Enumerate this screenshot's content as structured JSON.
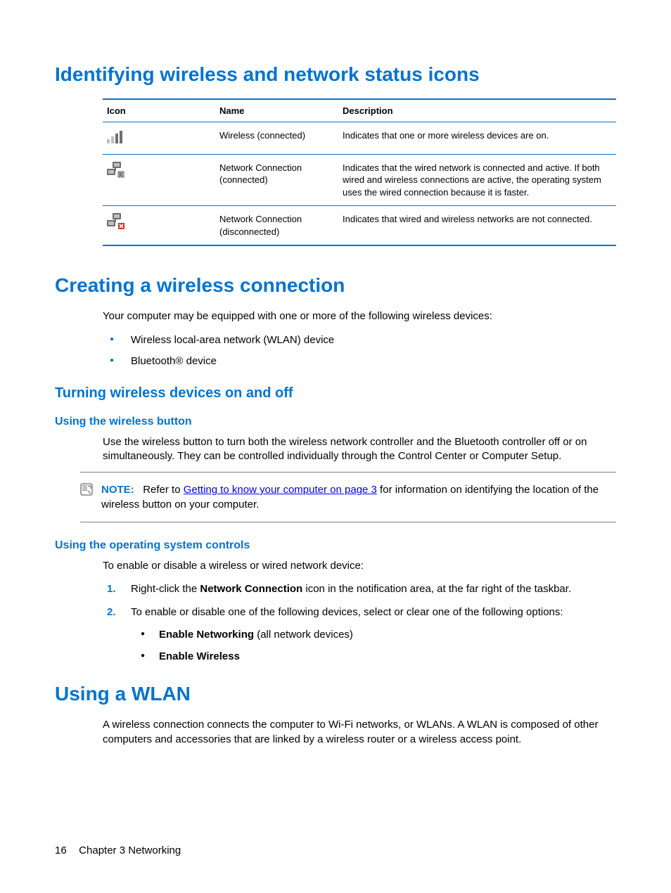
{
  "colors": {
    "heading_blue": "#0073cf",
    "border_blue": "#0073cf",
    "link_blue": "#0000ee",
    "step_number": "#0073cf",
    "bullet_blue": "#0073cf",
    "text_black": "#000000",
    "icon_gray_dark": "#6d6d6d",
    "icon_gray_light": "#bfbfbf",
    "icon_red": "#c03a2b",
    "note_border": "#808080",
    "background": "#ffffff"
  },
  "section1": {
    "heading": "Identifying wireless and network status icons",
    "table": {
      "headers": {
        "icon": "Icon",
        "name": "Name",
        "desc": "Description"
      },
      "rows": [
        {
          "icon_key": "wifi-bars",
          "name": "Wireless (connected)",
          "desc": "Indicates that one or more wireless devices are on."
        },
        {
          "icon_key": "net-connected",
          "name": "Network Connection (connected)",
          "desc": "Indicates that the wired network is connected and active. If both wired and wireless connections are active, the operating system uses the wired connection because it is faster."
        },
        {
          "icon_key": "net-disconnected",
          "name": "Network Connection (disconnected)",
          "desc": "Indicates that wired and wireless networks are not connected."
        }
      ]
    }
  },
  "section2": {
    "heading": "Creating a wireless connection",
    "intro": "Your computer may be equipped with one or more of the following wireless devices:",
    "bullets": [
      "Wireless local-area network (WLAN) device",
      "Bluetooth® device"
    ],
    "sub1": {
      "heading": "Turning wireless devices on and off",
      "s1": {
        "heading": "Using the wireless button",
        "para": "Use the wireless button to turn both the wireless network controller and the Bluetooth controller off or on simultaneously. They can be controlled individually through the Control Center or Computer Setup.",
        "note": {
          "label": "NOTE:",
          "before_link": "Refer to ",
          "link_text": "Getting to know your computer on page 3",
          "after_link": " for information on identifying the location of the wireless button on your computer."
        }
      },
      "s2": {
        "heading": "Using the operating system controls",
        "para": "To enable or disable a wireless or wired network device:",
        "steps": [
          {
            "pre": "Right-click the ",
            "bold": "Network Connection",
            "post": " icon in the notification area, at the far right of the taskbar."
          },
          {
            "text": "To enable or disable one of the following devices, select or clear one of the following options:",
            "sub": [
              {
                "bold": "Enable Networking",
                "post": " (all network devices)"
              },
              {
                "bold": "Enable Wireless",
                "post": ""
              }
            ]
          }
        ]
      }
    }
  },
  "section3": {
    "heading": "Using a WLAN",
    "para": "A wireless connection connects the computer to Wi-Fi networks, or WLANs. A WLAN is composed of other computers and accessories that are linked by a wireless router or a wireless access point."
  },
  "footer": {
    "page_number": "16",
    "chapter": "Chapter 3   Networking"
  }
}
